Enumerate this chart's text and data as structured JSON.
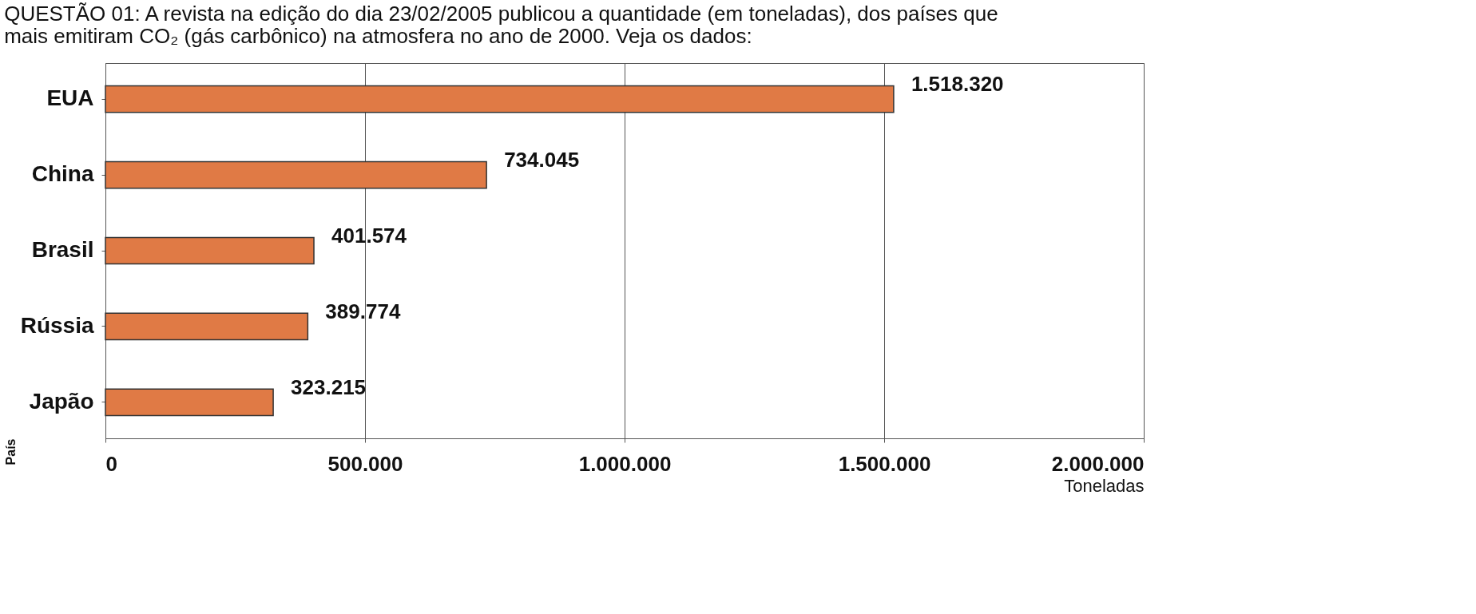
{
  "chart_data": {
    "type": "bar",
    "orientation": "horizontal",
    "title": "QUESTÃO 01: A revista na edição do dia 23/02/2005 publicou a quantidade (em toneladas), dos países que mais emitiram CO₂ (gás carbônico) na atmosfera no ano de 2000. Veja os dados:",
    "ylabel": "País",
    "xlabel": "Toneladas",
    "categories": [
      "EUA",
      "China",
      "Brasil",
      "Rússia",
      "Japão"
    ],
    "values": [
      1518320,
      734045,
      401574,
      389774,
      323215
    ],
    "value_labels": [
      "1.518.320",
      "734.045",
      "401.574",
      "389.774",
      "323.215"
    ],
    "color": "#e07a45",
    "xlim": [
      0,
      2000000
    ],
    "xticks": [
      0,
      {
        "value": 500000,
        "label": "500.000"
      },
      {
        "value": 1000000,
        "label": "1.000.000"
      },
      {
        "value": 1500000,
        "label": "1.500.000"
      },
      {
        "value": 2000000,
        "label": "2.000.000"
      }
    ],
    "grid": "x"
  }
}
